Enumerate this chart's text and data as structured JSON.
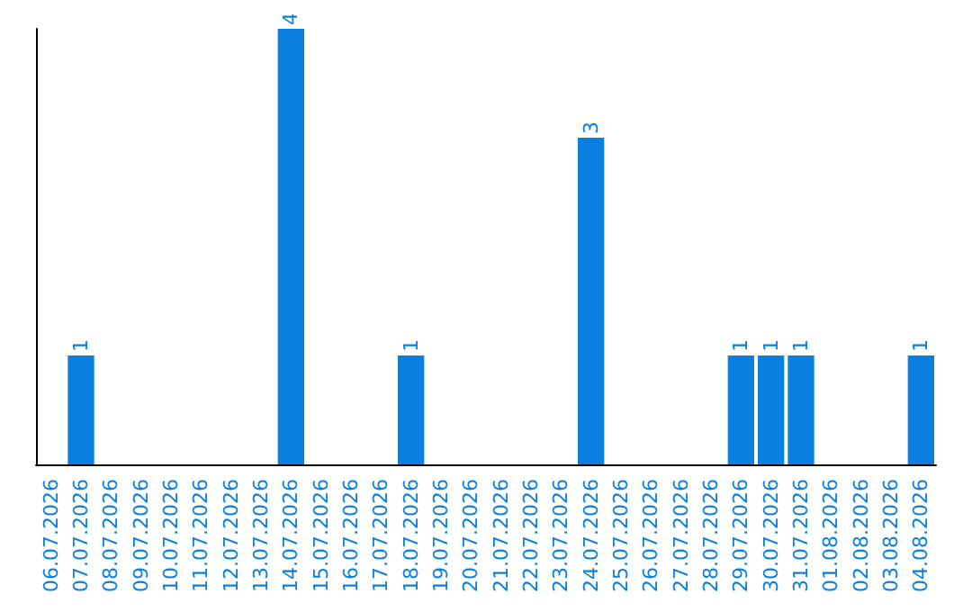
{
  "chart_data": {
    "type": "bar",
    "categories": [
      "06.07.2026",
      "07.07.2026",
      "08.07.2026",
      "09.07.2026",
      "10.07.2026",
      "11.07.2026",
      "12.07.2026",
      "13.07.2026",
      "14.07.2026",
      "15.07.2026",
      "16.07.2026",
      "17.07.2026",
      "18.07.2026",
      "19.07.2026",
      "20.07.2026",
      "21.07.2026",
      "22.07.2026",
      "23.07.2026",
      "24.07.2026",
      "25.07.2026",
      "26.07.2026",
      "27.07.2026",
      "28.07.2026",
      "29.07.2026",
      "30.07.2026",
      "31.07.2026",
      "01.08.2026",
      "02.08.2026",
      "03.08.2026",
      "04.08.2026"
    ],
    "values": [
      0,
      1,
      0,
      0,
      0,
      0,
      0,
      0,
      4,
      0,
      0,
      0,
      1,
      0,
      0,
      0,
      0,
      0,
      3,
      0,
      0,
      0,
      0,
      1,
      1,
      1,
      0,
      0,
      0,
      1
    ],
    "value_labels": [
      null,
      "1",
      null,
      null,
      null,
      null,
      null,
      null,
      "4",
      null,
      null,
      null,
      "1",
      null,
      null,
      null,
      null,
      null,
      "3",
      null,
      null,
      null,
      null,
      "1",
      "1",
      "1",
      null,
      null,
      null,
      "1"
    ],
    "color": "#0a7fdf",
    "tick_labels": "x",
    "grid": false
  }
}
